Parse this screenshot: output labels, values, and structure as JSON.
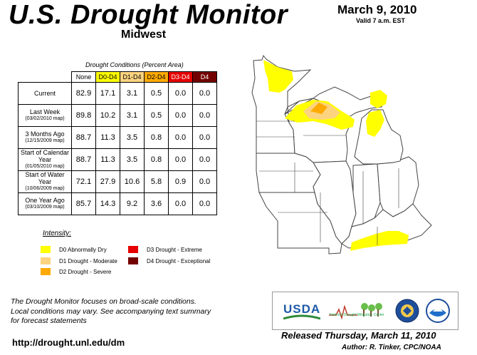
{
  "header": {
    "title": "U.S. Drought Monitor",
    "region": "Midwest",
    "date": "March 9, 2010",
    "valid": "Valid 7 a.m. EST"
  },
  "table": {
    "caption": "Drought Conditions (Percent Area)",
    "columns": [
      {
        "label": "None",
        "bg": "#ffffff",
        "fg": "#000000"
      },
      {
        "label": "D0-D4",
        "bg": "#ffff00",
        "fg": "#000000"
      },
      {
        "label": "D1-D4",
        "bg": "#fcd37f",
        "fg": "#000000"
      },
      {
        "label": "D2-D4",
        "bg": "#ffaa00",
        "fg": "#000000"
      },
      {
        "label": "D3-D4",
        "bg": "#e60000",
        "fg": "#ffffff"
      },
      {
        "label": "D4",
        "bg": "#730000",
        "fg": "#ffffff"
      }
    ],
    "rows": [
      {
        "label": "Current",
        "sub": "",
        "values": [
          "82.9",
          "17.1",
          "3.1",
          "0.5",
          "0.0",
          "0.0"
        ]
      },
      {
        "label": "Last Week",
        "sub": "(03/02/2010 map)",
        "values": [
          "89.8",
          "10.2",
          "3.1",
          "0.5",
          "0.0",
          "0.0"
        ]
      },
      {
        "label": "3 Months Ago",
        "sub": "(12/15/2009 map)",
        "values": [
          "88.7",
          "11.3",
          "3.5",
          "0.8",
          "0.0",
          "0.0"
        ]
      },
      {
        "label": "Start of Calendar Year",
        "sub": "(01/05/2010 map)",
        "values": [
          "88.7",
          "11.3",
          "3.5",
          "0.8",
          "0.0",
          "0.0"
        ]
      },
      {
        "label": "Start of Water Year",
        "sub": "(10/06/2009 map)",
        "values": [
          "72.1",
          "27.9",
          "10.6",
          "5.8",
          "0.9",
          "0.0"
        ]
      },
      {
        "label": "One Year Ago",
        "sub": "(03/10/2009 map)",
        "values": [
          "85.7",
          "14.3",
          "9.2",
          "3.6",
          "0.0",
          "0.0"
        ]
      }
    ]
  },
  "legend": {
    "title": "Intensity:",
    "items": [
      {
        "label": "D0 Abnormally Dry",
        "color": "#ffff00"
      },
      {
        "label": "D1 Drought - Moderate",
        "color": "#fcd37f"
      },
      {
        "label": "D2 Drought - Severe",
        "color": "#ffaa00"
      },
      {
        "label": "D3 Drought - Extreme",
        "color": "#e60000"
      },
      {
        "label": "D4 Drought - Exceptional",
        "color": "#730000"
      }
    ]
  },
  "footer": {
    "note_lines": [
      "The Drought Monitor focuses on broad-scale conditions.",
      "Local conditions may vary. See accompanying text summary",
      "for forecast statements"
    ],
    "url": "http://drought.unl.edu/dm",
    "released": "Released Thursday, March 11, 2010",
    "author": "Author: R. Tinker, CPC/NOAA"
  },
  "logos": {
    "usda": "USDA",
    "ndmc": "National Drought Mitigation Center",
    "icons": [
      "usda-logo-icon",
      "ndmc-logo-icon",
      "commerce-seal-icon",
      "noaa-logo-icon"
    ]
  }
}
